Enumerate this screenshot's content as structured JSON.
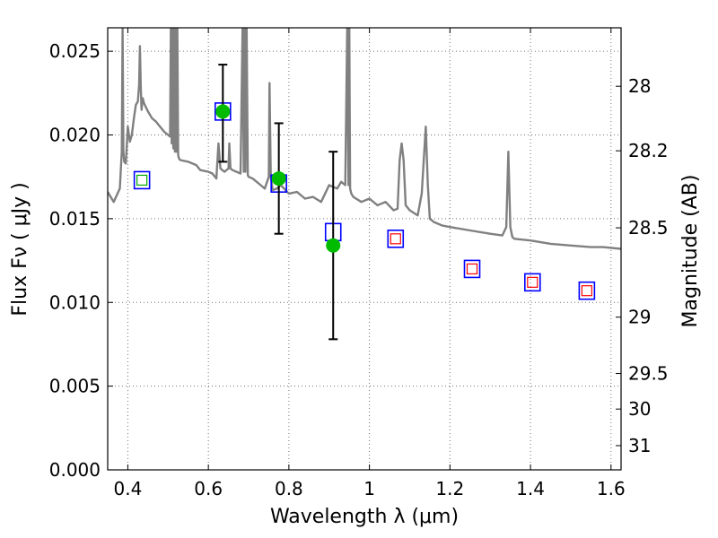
{
  "chart_data": {
    "type": "scatter",
    "xlabel": "Wavelength  λ (μm)",
    "ylabel": "Flux  Fν  ( μJy )",
    "ylabel_right": "Magnitude (AB)",
    "xlim": [
      0.35,
      1.625
    ],
    "ylim": [
      0.0,
      0.0264
    ],
    "grid": true,
    "x_ticks": [
      0.4,
      0.6,
      0.8,
      1.0,
      1.2,
      1.4,
      1.6
    ],
    "x_tick_labels": [
      "0.4",
      "0.6",
      "0.8",
      "1",
      "1.2",
      "1.4",
      "1.6"
    ],
    "y_ticks": [
      0.0,
      0.005,
      0.01,
      0.015,
      0.02,
      0.025
    ],
    "y_tick_labels": [
      "0.000",
      "0.005",
      "0.010",
      "0.015",
      "0.020",
      "0.025"
    ],
    "right_ticks": [
      28,
      28.2,
      28.5,
      29,
      29.5,
      30,
      31
    ],
    "right_tick_labels": [
      "28",
      "28.2",
      "28.5",
      "29",
      "29.5",
      "30",
      "31"
    ],
    "series": [
      {
        "style": "line",
        "color": "#808080",
        "x": [
          0.35,
          0.365,
          0.38,
          0.385,
          0.387,
          0.389,
          0.391,
          0.395,
          0.4,
          0.405,
          0.41,
          0.415,
          0.42,
          0.425,
          0.428,
          0.43,
          0.432,
          0.434,
          0.437,
          0.44,
          0.45,
          0.46,
          0.47,
          0.48,
          0.49,
          0.5,
          0.505,
          0.507,
          0.509,
          0.511,
          0.513,
          0.515,
          0.517,
          0.519,
          0.521,
          0.523,
          0.525,
          0.527,
          0.53,
          0.55,
          0.57,
          0.58,
          0.6,
          0.61,
          0.62,
          0.625,
          0.63,
          0.64,
          0.65,
          0.652,
          0.655,
          0.66,
          0.67,
          0.68,
          0.685,
          0.688,
          0.69,
          0.692,
          0.695,
          0.698,
          0.7,
          0.71,
          0.72,
          0.73,
          0.74,
          0.75,
          0.752,
          0.755,
          0.76,
          0.77,
          0.78,
          0.8,
          0.82,
          0.84,
          0.86,
          0.88,
          0.9,
          0.92,
          0.93,
          0.94,
          0.945,
          0.948,
          0.95,
          0.952,
          0.955,
          0.96,
          0.98,
          1.0,
          1.02,
          1.04,
          1.06,
          1.07,
          1.075,
          1.08,
          1.085,
          1.09,
          1.1,
          1.12,
          1.13,
          1.14,
          1.145,
          1.15,
          1.16,
          1.18,
          1.2,
          1.25,
          1.3,
          1.33,
          1.34,
          1.345,
          1.35,
          1.355,
          1.36,
          1.4,
          1.45,
          1.5,
          1.55,
          1.58,
          1.625
        ],
        "y": [
          0.0166,
          0.016,
          0.0168,
          0.019,
          0.0265,
          0.019,
          0.0184,
          0.0183,
          0.0205,
          0.0196,
          0.02,
          0.021,
          0.0218,
          0.022,
          0.023,
          0.0253,
          0.023,
          0.0215,
          0.0222,
          0.0219,
          0.0214,
          0.021,
          0.0208,
          0.0205,
          0.0202,
          0.02,
          0.0199,
          0.0265,
          0.0195,
          0.0265,
          0.0192,
          0.0265,
          0.019,
          0.0265,
          0.019,
          0.0265,
          0.0188,
          0.0186,
          0.0185,
          0.0184,
          0.0182,
          0.0179,
          0.0178,
          0.0177,
          0.0174,
          0.0195,
          0.018,
          0.0178,
          0.018,
          0.0195,
          0.018,
          0.0179,
          0.0178,
          0.0177,
          0.0265,
          0.0178,
          0.0265,
          0.0178,
          0.0265,
          0.0176,
          0.0175,
          0.0174,
          0.0172,
          0.017,
          0.0168,
          0.0175,
          0.0231,
          0.0175,
          0.0167,
          0.0168,
          0.017,
          0.0165,
          0.0166,
          0.0162,
          0.0163,
          0.016,
          0.017,
          0.0168,
          0.0172,
          0.017,
          0.0265,
          0.017,
          0.0265,
          0.0168,
          0.0165,
          0.0163,
          0.016,
          0.0162,
          0.0158,
          0.016,
          0.0155,
          0.0156,
          0.0185,
          0.0195,
          0.0185,
          0.0158,
          0.0155,
          0.0152,
          0.0165,
          0.0205,
          0.017,
          0.015,
          0.0148,
          0.0146,
          0.0145,
          0.0143,
          0.0141,
          0.014,
          0.0145,
          0.019,
          0.0145,
          0.0139,
          0.0138,
          0.0137,
          0.0135,
          0.0134,
          0.0133,
          0.0133,
          0.0132
        ]
      },
      {
        "style": "open-square",
        "color": "#0000ff",
        "x": [
          0.435,
          0.636,
          0.775,
          0.91,
          1.065,
          1.255,
          1.405,
          1.54
        ],
        "y": [
          0.0173,
          0.0214,
          0.0171,
          0.0142,
          0.0138,
          0.012,
          0.0112,
          0.0107
        ]
      },
      {
        "style": "small-square",
        "color": "#00aa00",
        "x": [
          0.435
        ],
        "y": [
          0.0173
        ]
      },
      {
        "style": "small-square",
        "color": "#ff0000",
        "x": [
          1.065,
          1.255,
          1.405,
          1.54
        ],
        "y": [
          0.0138,
          0.012,
          0.0112,
          0.0107
        ]
      },
      {
        "style": "filled-circle-errorbar",
        "color": "#00bb00",
        "x": [
          0.636,
          0.775,
          0.91
        ],
        "y": [
          0.0214,
          0.0174,
          0.0134
        ],
        "err_low": [
          0.0184,
          0.0141,
          0.0078
        ],
        "err_high": [
          0.0242,
          0.0207,
          0.019
        ]
      }
    ]
  }
}
